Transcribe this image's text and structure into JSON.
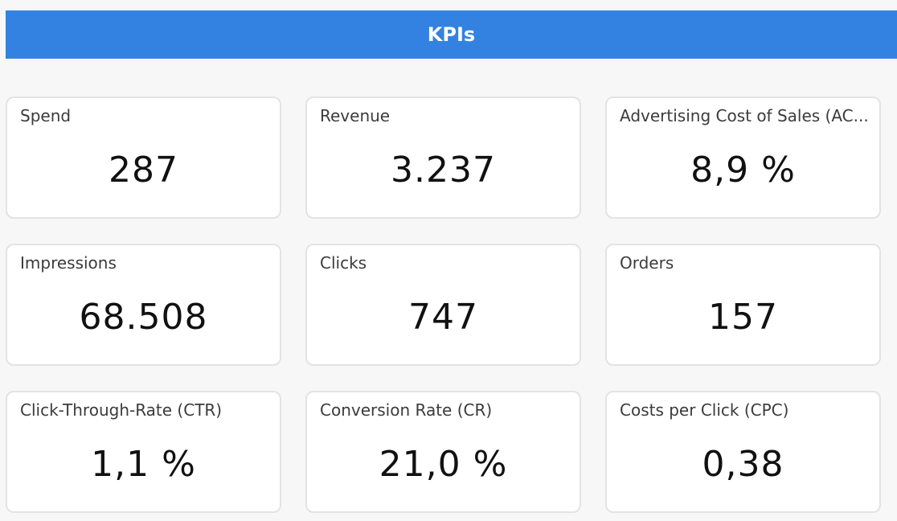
{
  "header": {
    "title": "KPIs"
  },
  "colors": {
    "header_bg": "#3382e2",
    "page_bg": "#f7f7f7",
    "card_bg": "#ffffff",
    "card_border": "#e3e3e3"
  },
  "kpis": [
    {
      "label": "Spend",
      "value": "287"
    },
    {
      "label": "Revenue",
      "value": "3.237"
    },
    {
      "label": "Advertising Cost of Sales (AC...",
      "value": "8,9 %"
    },
    {
      "label": "Impressions",
      "value": "68.508"
    },
    {
      "label": "Clicks",
      "value": "747"
    },
    {
      "label": "Orders",
      "value": "157"
    },
    {
      "label": "Click-Through-Rate (CTR)",
      "value": "1,1 %"
    },
    {
      "label": "Conversion Rate (CR)",
      "value": "21,0 %"
    },
    {
      "label": "Costs per Click (CPC)",
      "value": "0,38"
    }
  ]
}
